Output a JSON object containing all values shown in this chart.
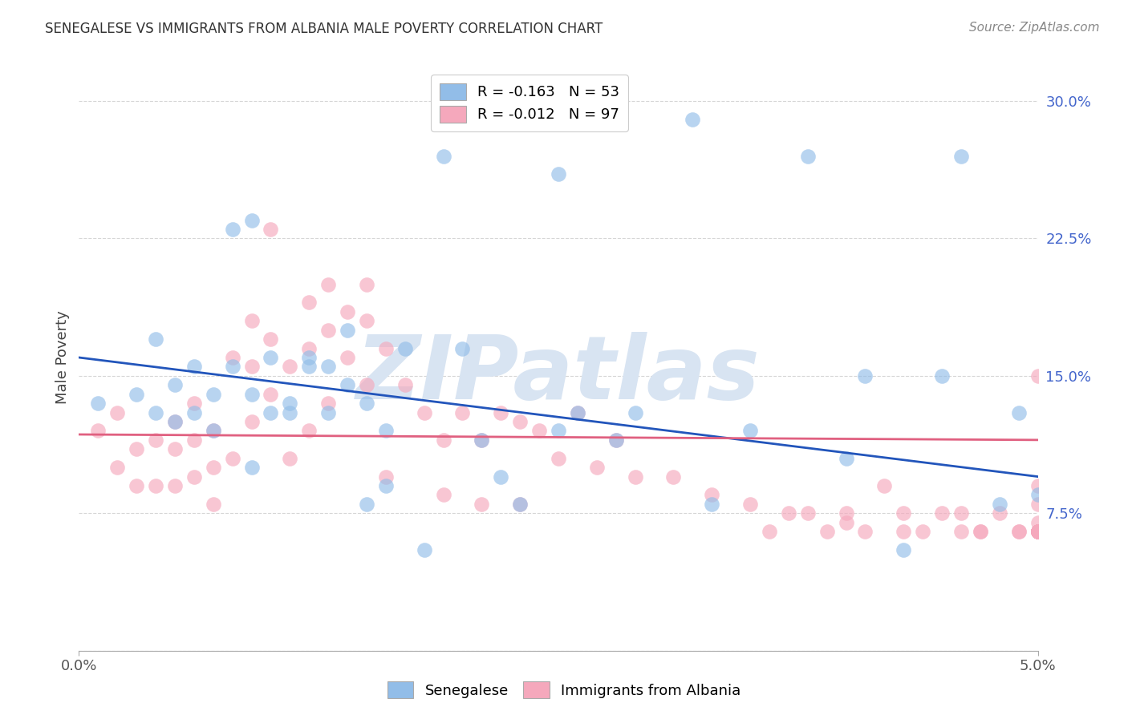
{
  "title": "SENEGALESE VS IMMIGRANTS FROM ALBANIA MALE POVERTY CORRELATION CHART",
  "source": "Source: ZipAtlas.com",
  "ylabel": "Male Poverty",
  "yticks": [
    0.0,
    0.075,
    0.15,
    0.225,
    0.3
  ],
  "ytick_labels": [
    "",
    "7.5%",
    "15.0%",
    "22.5%",
    "30.0%"
  ],
  "xmin": 0.0,
  "xmax": 0.05,
  "ymin": 0.0,
  "ymax": 0.32,
  "legend_r1": "R = -0.163   N = 53",
  "legend_r2": "R = -0.012   N = 97",
  "blue_color": "#92BDE8",
  "pink_color": "#F5A8BC",
  "line_blue": "#2255BB",
  "line_pink": "#E06080",
  "watermark": "ZIPatlas",
  "watermark_color": "#D8E4F2",
  "blue_scatter_x": [
    0.001,
    0.003,
    0.004,
    0.004,
    0.005,
    0.005,
    0.006,
    0.006,
    0.007,
    0.007,
    0.008,
    0.008,
    0.009,
    0.009,
    0.009,
    0.01,
    0.01,
    0.011,
    0.011,
    0.012,
    0.012,
    0.013,
    0.013,
    0.014,
    0.014,
    0.015,
    0.015,
    0.016,
    0.016,
    0.017,
    0.018,
    0.019,
    0.02,
    0.021,
    0.022,
    0.023,
    0.025,
    0.025,
    0.026,
    0.028,
    0.029,
    0.032,
    0.033,
    0.035,
    0.038,
    0.04,
    0.041,
    0.043,
    0.045,
    0.046,
    0.048,
    0.049,
    0.05
  ],
  "blue_scatter_y": [
    0.135,
    0.14,
    0.13,
    0.17,
    0.125,
    0.145,
    0.155,
    0.13,
    0.14,
    0.12,
    0.155,
    0.23,
    0.235,
    0.14,
    0.1,
    0.13,
    0.16,
    0.135,
    0.13,
    0.16,
    0.155,
    0.155,
    0.13,
    0.145,
    0.175,
    0.135,
    0.08,
    0.12,
    0.09,
    0.165,
    0.055,
    0.27,
    0.165,
    0.115,
    0.095,
    0.08,
    0.12,
    0.26,
    0.13,
    0.115,
    0.13,
    0.29,
    0.08,
    0.12,
    0.27,
    0.105,
    0.15,
    0.055,
    0.15,
    0.27,
    0.08,
    0.13,
    0.085
  ],
  "pink_scatter_x": [
    0.001,
    0.002,
    0.002,
    0.003,
    0.003,
    0.004,
    0.004,
    0.005,
    0.005,
    0.005,
    0.006,
    0.006,
    0.006,
    0.007,
    0.007,
    0.007,
    0.008,
    0.008,
    0.009,
    0.009,
    0.009,
    0.01,
    0.01,
    0.01,
    0.011,
    0.011,
    0.012,
    0.012,
    0.012,
    0.013,
    0.013,
    0.013,
    0.014,
    0.014,
    0.015,
    0.015,
    0.015,
    0.016,
    0.016,
    0.017,
    0.018,
    0.019,
    0.019,
    0.02,
    0.021,
    0.021,
    0.022,
    0.023,
    0.023,
    0.024,
    0.025,
    0.026,
    0.027,
    0.028,
    0.029,
    0.031,
    0.033,
    0.035,
    0.036,
    0.037,
    0.038,
    0.039,
    0.04,
    0.04,
    0.041,
    0.042,
    0.043,
    0.043,
    0.044,
    0.045,
    0.046,
    0.046,
    0.047,
    0.047,
    0.048,
    0.049,
    0.049,
    0.05,
    0.05,
    0.05,
    0.05,
    0.05,
    0.05,
    0.05,
    0.05,
    0.05,
    0.05,
    0.05,
    0.05,
    0.05,
    0.05,
    0.05,
    0.05,
    0.05,
    0.05,
    0.05,
    0.05
  ],
  "pink_scatter_y": [
    0.12,
    0.13,
    0.1,
    0.11,
    0.09,
    0.115,
    0.09,
    0.125,
    0.11,
    0.09,
    0.135,
    0.115,
    0.095,
    0.12,
    0.1,
    0.08,
    0.16,
    0.105,
    0.18,
    0.155,
    0.125,
    0.23,
    0.17,
    0.14,
    0.155,
    0.105,
    0.19,
    0.165,
    0.12,
    0.2,
    0.175,
    0.135,
    0.185,
    0.16,
    0.2,
    0.18,
    0.145,
    0.165,
    0.095,
    0.145,
    0.13,
    0.115,
    0.085,
    0.13,
    0.115,
    0.08,
    0.13,
    0.125,
    0.08,
    0.12,
    0.105,
    0.13,
    0.1,
    0.115,
    0.095,
    0.095,
    0.085,
    0.08,
    0.065,
    0.075,
    0.075,
    0.065,
    0.07,
    0.075,
    0.065,
    0.09,
    0.075,
    0.065,
    0.065,
    0.075,
    0.065,
    0.075,
    0.065,
    0.065,
    0.075,
    0.065,
    0.065,
    0.15,
    0.09,
    0.08,
    0.07,
    0.065,
    0.065,
    0.065,
    0.065,
    0.065,
    0.065,
    0.065,
    0.065,
    0.065,
    0.065,
    0.065,
    0.065,
    0.065,
    0.065,
    0.065,
    0.065
  ],
  "blue_line_x": [
    0.0,
    0.05
  ],
  "blue_line_y": [
    0.16,
    0.095
  ],
  "pink_line_x": [
    0.0,
    0.05
  ],
  "pink_line_y": [
    0.118,
    0.115
  ],
  "background_color": "#FFFFFF",
  "grid_color": "#CCCCCC",
  "title_fontsize": 12,
  "source_fontsize": 11,
  "ylabel_fontsize": 13,
  "ytick_fontsize": 13,
  "xtick_fontsize": 13,
  "legend_fontsize": 13
}
